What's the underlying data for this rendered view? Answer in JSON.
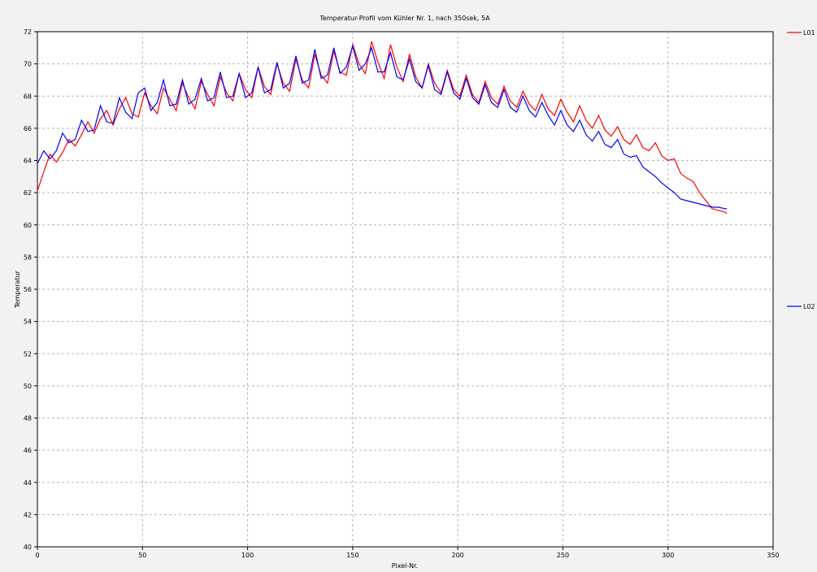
{
  "colors": {
    "background": "#f2f2f2",
    "plot_background": "#ffffff",
    "grid": "#b4b4b4",
    "L01": "#ff0000",
    "L02": "#0000ff"
  },
  "chart_data": {
    "type": "line",
    "title": "Temperatur-Profil vom Kühler Nr. 1, nach 350sek, 5A",
    "xlabel": "Pixel-Nr.",
    "ylabel": "Temperatur",
    "xlim": [
      0,
      350
    ],
    "ylim": [
      40,
      72
    ],
    "xticks": [
      0,
      50,
      100,
      150,
      200,
      250,
      300,
      350
    ],
    "yticks": [
      40,
      42,
      44,
      46,
      48,
      50,
      52,
      54,
      56,
      58,
      60,
      62,
      64,
      66,
      68,
      70,
      72
    ],
    "grid": true,
    "grid_style": "dashed",
    "legend_placement": "right",
    "series": [
      {
        "name": "L01",
        "color": "#ff0000",
        "x": [
          0,
          3,
          6,
          9,
          12,
          15,
          18,
          21,
          24,
          27,
          30,
          33,
          36,
          39,
          42,
          45,
          48,
          51,
          54,
          57,
          60,
          63,
          66,
          69,
          72,
          75,
          78,
          81,
          84,
          87,
          90,
          93,
          96,
          99,
          102,
          105,
          108,
          111,
          114,
          117,
          120,
          123,
          126,
          129,
          132,
          135,
          138,
          141,
          144,
          147,
          150,
          153,
          156,
          159,
          162,
          165,
          168,
          171,
          174,
          177,
          180,
          183,
          186,
          189,
          192,
          195,
          198,
          201,
          204,
          207,
          210,
          213,
          216,
          219,
          222,
          225,
          228,
          231,
          234,
          237,
          240,
          243,
          246,
          249,
          252,
          255,
          258,
          261,
          264,
          267,
          270,
          273,
          276,
          279,
          282,
          285,
          288,
          291,
          294,
          297,
          300,
          303,
          306,
          309,
          312,
          315,
          318,
          321,
          324,
          327,
          328
        ],
        "values": [
          62.1,
          63.3,
          64.4,
          63.9,
          64.5,
          65.3,
          64.9,
          65.6,
          66.4,
          65.7,
          66.6,
          67.1,
          66.2,
          67.2,
          67.9,
          66.9,
          66.7,
          68.2,
          67.4,
          66.9,
          68.5,
          67.8,
          67.1,
          68.8,
          67.9,
          67.2,
          68.9,
          68.1,
          67.4,
          69.2,
          68.2,
          67.7,
          69.4,
          68.4,
          67.9,
          69.8,
          68.6,
          68.1,
          70.0,
          68.8,
          68.3,
          70.3,
          69.0,
          68.5,
          70.6,
          69.3,
          68.8,
          70.8,
          69.5,
          69.3,
          71.2,
          70.0,
          69.4,
          71.4,
          70.1,
          69.1,
          71.2,
          69.8,
          68.9,
          70.6,
          69.2,
          68.5,
          70.0,
          68.8,
          68.2,
          69.6,
          68.4,
          68.0,
          69.3,
          68.1,
          67.6,
          68.9,
          67.9,
          67.5,
          68.6,
          67.7,
          67.3,
          68.3,
          67.5,
          67.1,
          68.1,
          67.2,
          66.8,
          67.8,
          67.0,
          66.4,
          67.4,
          66.5,
          66.0,
          66.8,
          65.9,
          65.5,
          66.1,
          65.3,
          65.0,
          65.6,
          64.8,
          64.6,
          65.1,
          64.3,
          64.0,
          64.1,
          63.2,
          62.9,
          62.7,
          62.0,
          61.5,
          61.0,
          60.9,
          60.8,
          60.7
        ],
        "_note": ""
      },
      {
        "name": "L02",
        "color": "#0000ff",
        "x": [
          0,
          3,
          6,
          9,
          12,
          15,
          18,
          21,
          24,
          27,
          30,
          33,
          36,
          39,
          42,
          45,
          48,
          51,
          54,
          57,
          60,
          63,
          66,
          69,
          72,
          75,
          78,
          81,
          84,
          87,
          90,
          93,
          96,
          99,
          102,
          105,
          108,
          111,
          114,
          117,
          120,
          123,
          126,
          129,
          132,
          135,
          138,
          141,
          144,
          147,
          150,
          153,
          156,
          159,
          162,
          165,
          168,
          171,
          174,
          177,
          180,
          183,
          186,
          189,
          192,
          195,
          198,
          201,
          204,
          207,
          210,
          213,
          216,
          219,
          222,
          225,
          228,
          231,
          234,
          237,
          240,
          243,
          246,
          249,
          252,
          255,
          258,
          261,
          264,
          267,
          270,
          273,
          276,
          279,
          282,
          285,
          288,
          291,
          294,
          297,
          300,
          303,
          306,
          309,
          312,
          315,
          318,
          321,
          324,
          327,
          328
        ],
        "values": [
          63.8,
          64.6,
          64.1,
          64.6,
          65.7,
          65.1,
          65.3,
          66.5,
          65.8,
          65.9,
          67.4,
          66.4,
          66.3,
          67.9,
          67.0,
          66.6,
          68.2,
          68.5,
          67.1,
          67.6,
          69.0,
          67.4,
          67.5,
          69.0,
          67.5,
          67.8,
          69.1,
          67.7,
          67.9,
          69.5,
          67.9,
          68.0,
          69.4,
          67.9,
          68.2,
          69.8,
          68.2,
          68.4,
          70.1,
          68.5,
          68.8,
          70.5,
          68.8,
          69.0,
          70.9,
          69.1,
          69.3,
          71.0,
          69.4,
          69.8,
          71.1,
          69.6,
          70.0,
          71.0,
          69.5,
          69.5,
          70.7,
          69.2,
          69.0,
          70.3,
          68.9,
          68.5,
          69.9,
          68.4,
          68.1,
          69.5,
          68.2,
          67.8,
          69.1,
          67.9,
          67.5,
          68.7,
          67.6,
          67.3,
          68.4,
          67.3,
          67.0,
          68.0,
          67.1,
          66.7,
          67.6,
          66.8,
          66.2,
          67.1,
          66.2,
          65.8,
          66.5,
          65.6,
          65.2,
          65.8,
          65.0,
          64.8,
          65.3,
          64.4,
          64.2,
          64.3,
          63.6,
          63.3,
          63.0,
          62.6,
          62.3,
          62.0,
          61.6,
          61.5,
          61.4,
          61.3,
          61.2,
          61.1,
          61.1,
          61.0,
          61.0
        ],
        "_note": ""
      }
    ]
  }
}
